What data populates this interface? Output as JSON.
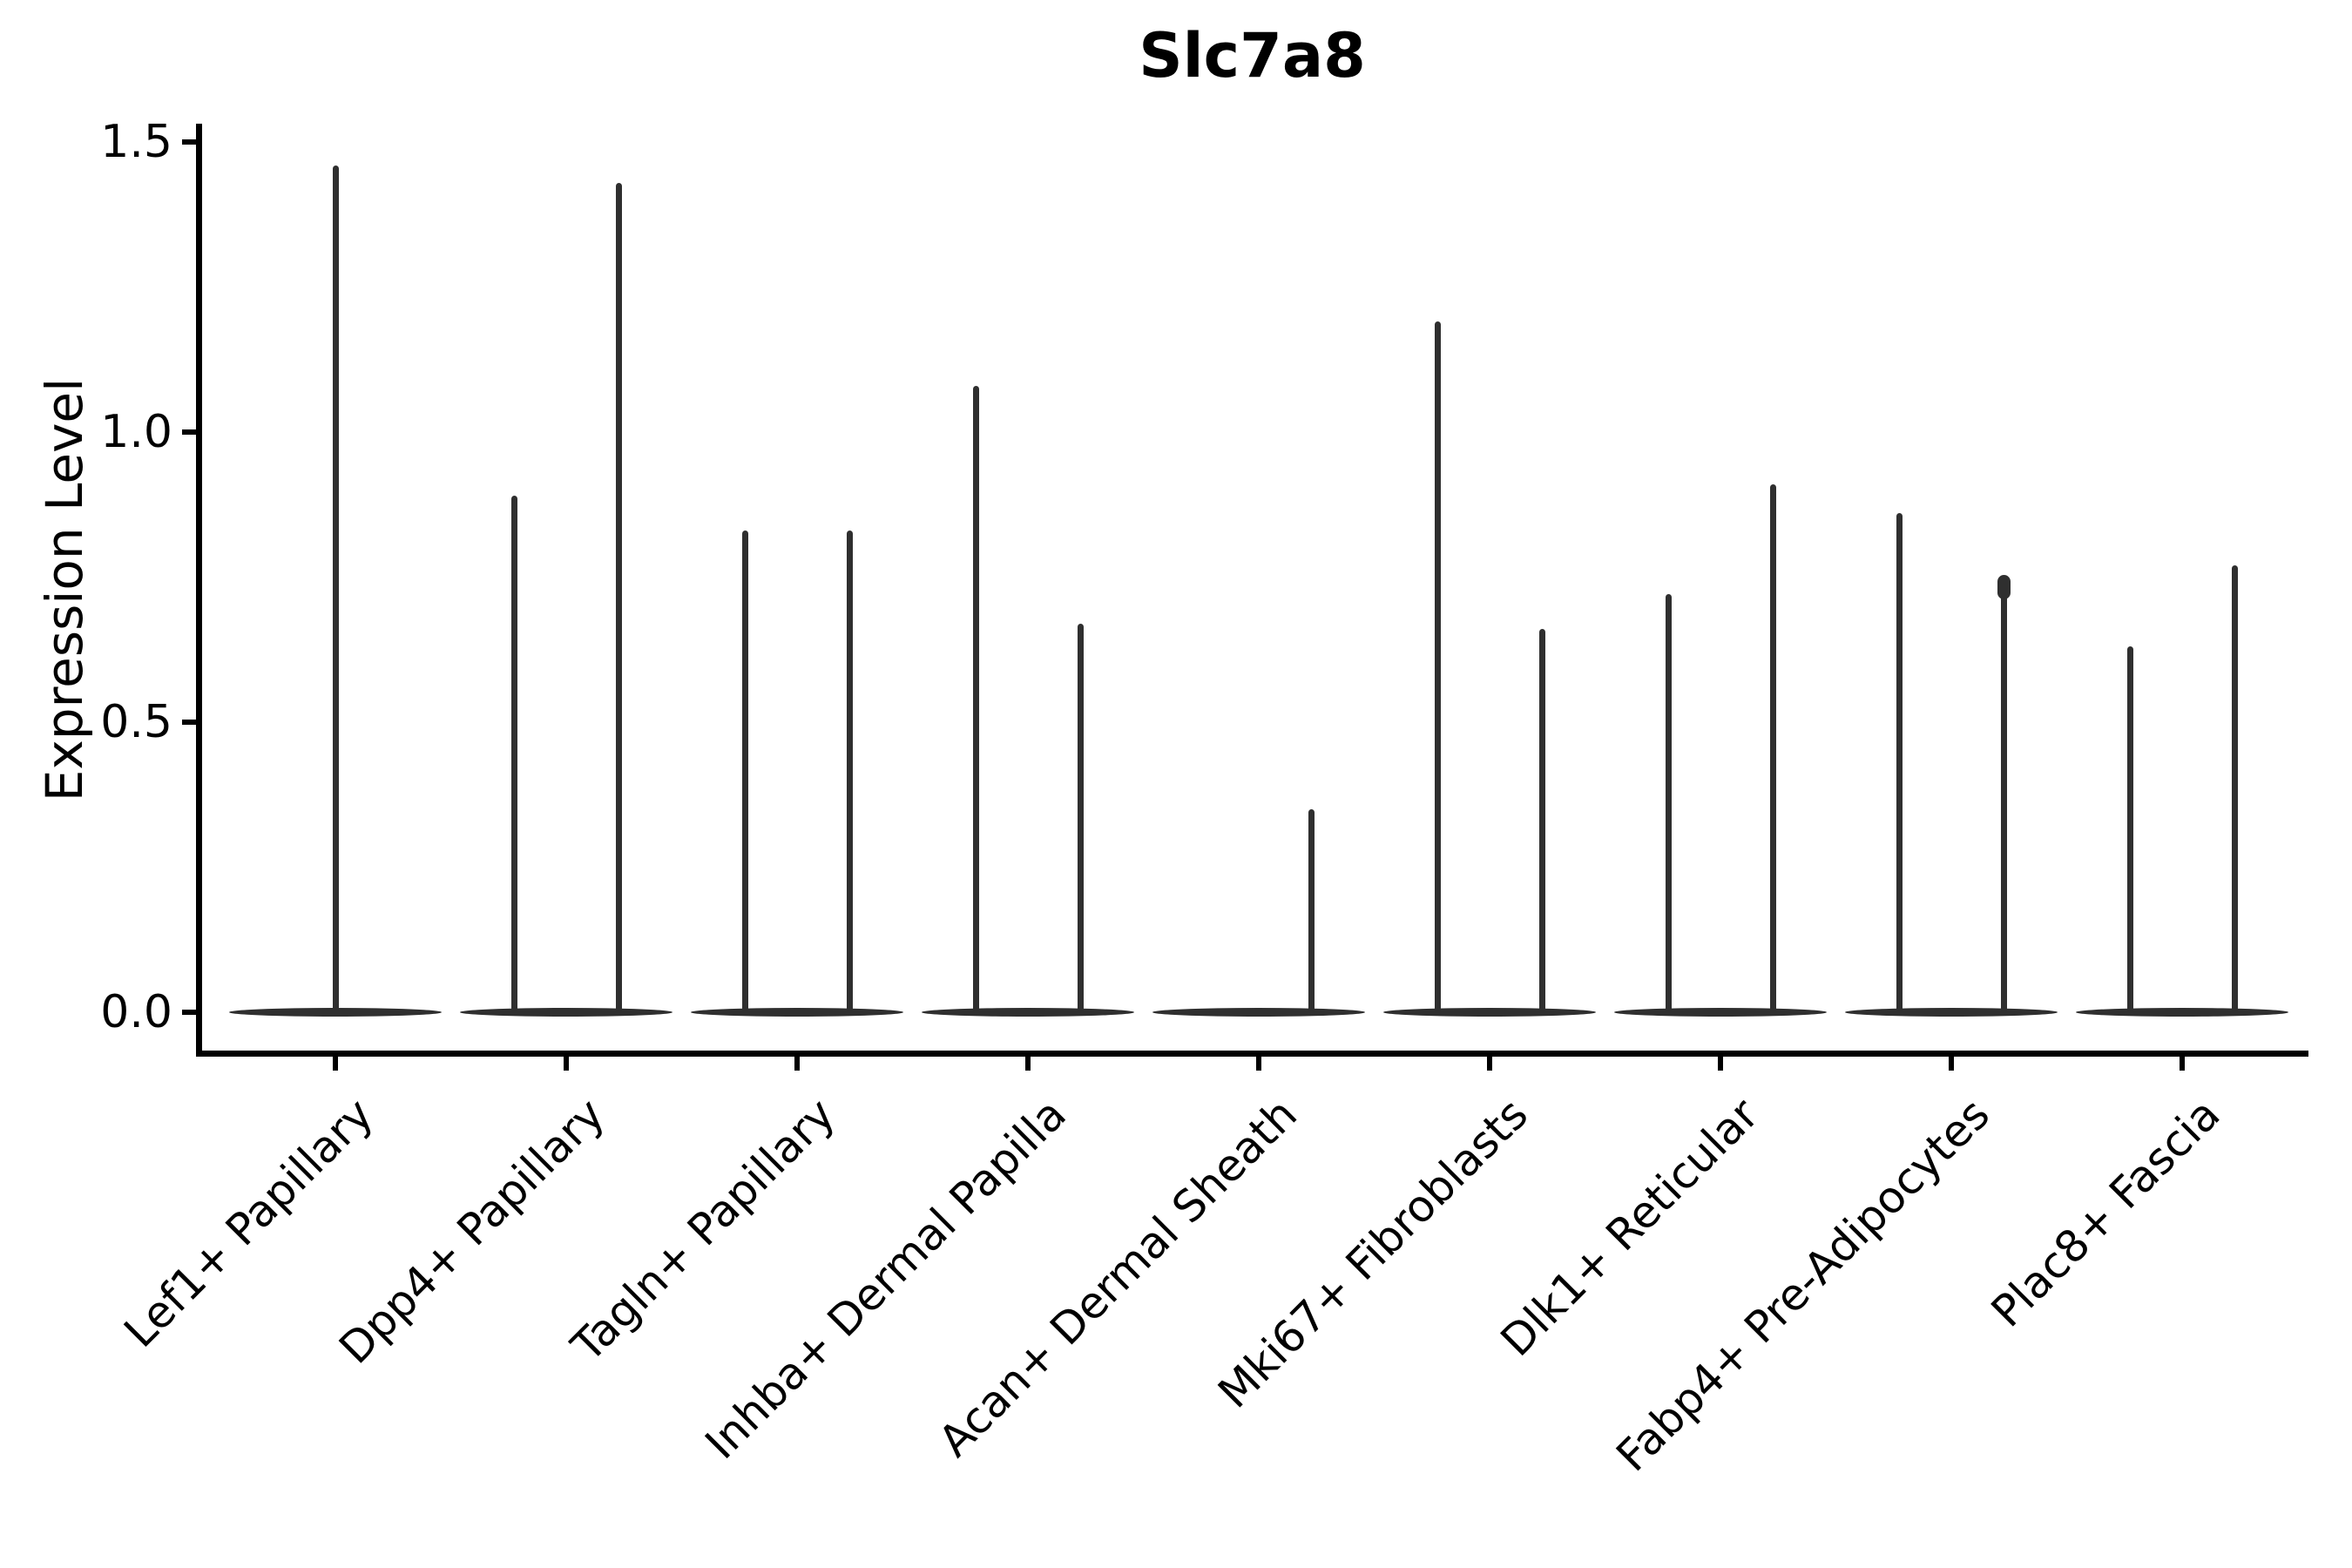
{
  "title": "Slc7a8",
  "y_axis_label": "Expression Level",
  "chart_data": {
    "type": "violin",
    "title": "Slc7a8",
    "xlabel": "",
    "ylabel": "Expression Level",
    "ylim": [
      0.0,
      1.5
    ],
    "yticks": [
      "0.0",
      "0.5",
      "1.0",
      "1.5"
    ],
    "grid": false,
    "legend": "none",
    "description": "Collapsed (near-zero-width) violins: each category shows a flat density body at expression 0 with thin vertical spikes reaching the maximum expression value. Most categories contain two side-by-side violins (left/right); Lef1+ Papillary has a single centered violin; the left violin of Acan+ Dermal Sheath is flat at 0.",
    "categories": [
      "Lef1+ Papillary",
      "Dpp4+ Papillary",
      "Tagln+ Papillary",
      "Inhba+ Dermal Papilla",
      "Acan+ Dermal Sheath",
      "Mki67+ Fibroblasts",
      "Dlk1+ Reticular",
      "Fabp4+ Pre-Adipocytes",
      "Plac8+ Fascia"
    ],
    "series": [
      {
        "category": "Lef1+ Papillary",
        "violins": [
          {
            "position": "center",
            "max": 1.46
          }
        ]
      },
      {
        "category": "Dpp4+ Papillary",
        "violins": [
          {
            "position": "left",
            "max": 0.89
          },
          {
            "position": "right",
            "max": 1.43
          }
        ]
      },
      {
        "category": "Tagln+ Papillary",
        "violins": [
          {
            "position": "left",
            "max": 0.83
          },
          {
            "position": "right",
            "max": 0.83
          }
        ]
      },
      {
        "category": "Inhba+ Dermal Papilla",
        "violins": [
          {
            "position": "left",
            "max": 1.08
          },
          {
            "position": "right",
            "max": 0.67
          }
        ]
      },
      {
        "category": "Acan+ Dermal Sheath",
        "violins": [
          {
            "position": "left",
            "max": 0.0
          },
          {
            "position": "right",
            "max": 0.35
          }
        ]
      },
      {
        "category": "Mki67+ Fibroblasts",
        "violins": [
          {
            "position": "left",
            "max": 1.19
          },
          {
            "position": "right",
            "max": 0.66
          }
        ]
      },
      {
        "category": "Dlk1+ Reticular",
        "violins": [
          {
            "position": "left",
            "max": 0.72
          },
          {
            "position": "right",
            "max": 0.91
          }
        ]
      },
      {
        "category": "Fabp4+ Pre-Adipocytes",
        "violins": [
          {
            "position": "left",
            "max": 0.86
          },
          {
            "position": "right",
            "max": 0.75,
            "tip_dot": true
          }
        ]
      },
      {
        "category": "Plac8+ Fascia",
        "violins": [
          {
            "position": "left",
            "max": 0.63
          },
          {
            "position": "right",
            "max": 0.77
          }
        ]
      }
    ],
    "colors": {
      "violin": "#2f2f2f",
      "axis": "#000000",
      "background": "#ffffff"
    }
  }
}
